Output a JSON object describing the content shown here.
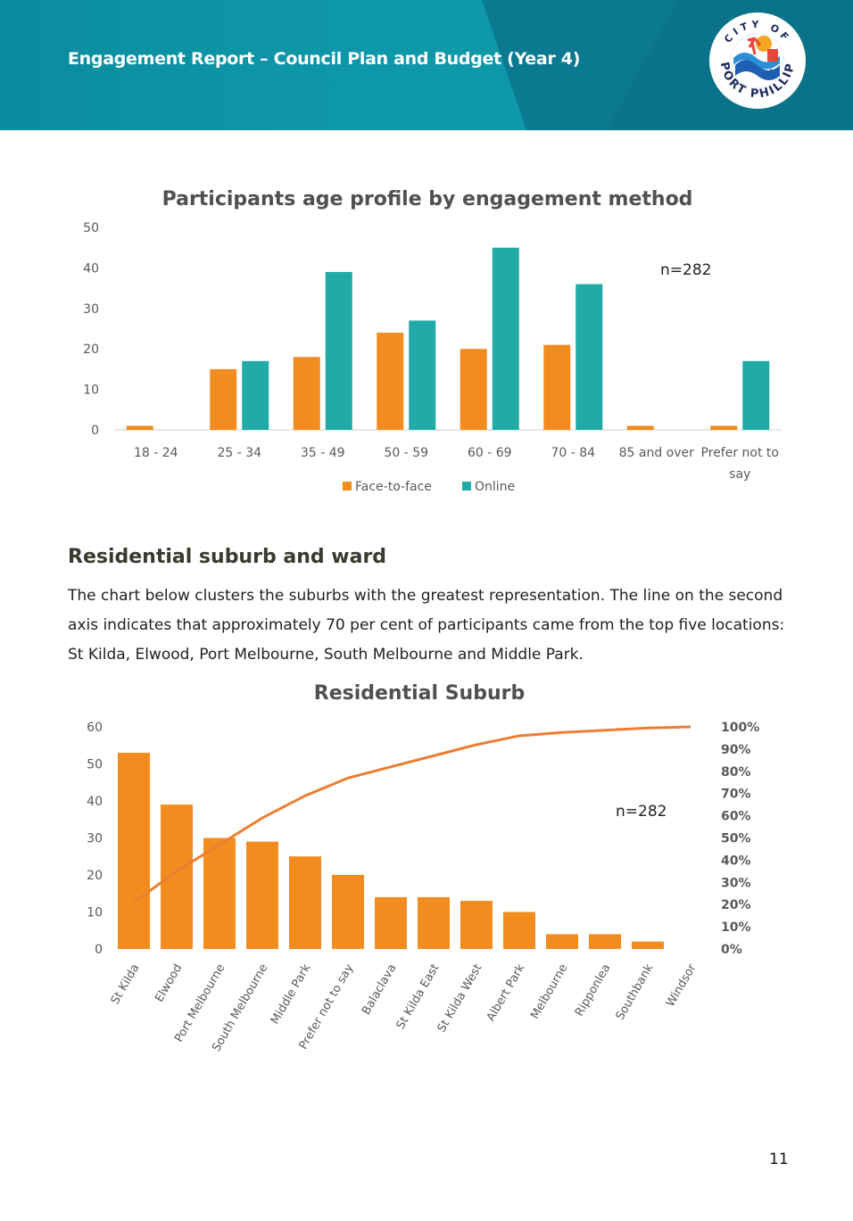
{
  "header": {
    "title": "Engagement Report – Council Plan and Budget (Year 4)",
    "logo": {
      "top_text": "CITY OF",
      "bottom_text": "PORT PHILLIP",
      "icon": "city-of-port-phillip-logo"
    }
  },
  "colors": {
    "face_to_face": "#f28c1e",
    "online": "#20aaa8",
    "header_teal": "#0f98a8",
    "pareto_line": "#ed7d31"
  },
  "chart1": {
    "title": "Participants age profile by engagement method",
    "annotation": "n=282"
  },
  "section": {
    "heading": "Residential suburb and ward",
    "paragraph": "The chart below clusters the suburbs with the greatest representation.  The line on the second axis indicates that approximately 70 per cent of participants came from the top five locations: St Kilda, Elwood, Port Melbourne, South Melbourne and Middle Park."
  },
  "chart2": {
    "title": "Residential Suburb",
    "annotation": "n=282"
  },
  "page_number": "11",
  "chart_data": [
    {
      "type": "bar",
      "title": "Participants age profile by engagement method",
      "categories": [
        "18 - 24",
        "25 - 34",
        "35 - 49",
        "50 - 59",
        "60 - 69",
        "70 - 84",
        "85 and over",
        "Prefer not to say"
      ],
      "series": [
        {
          "name": "Face-to-face",
          "values": [
            1,
            15,
            18,
            24,
            20,
            21,
            1,
            1
          ]
        },
        {
          "name": "Online",
          "values": [
            0,
            17,
            39,
            27,
            45,
            36,
            0,
            17
          ]
        }
      ],
      "ylim": [
        0,
        50
      ],
      "yticks": [
        "0",
        "10",
        "20",
        "30",
        "40",
        "50"
      ],
      "legend": "bottom",
      "grid": false
    },
    {
      "type": "bar",
      "title": "Residential Suburb",
      "categories": [
        "St Kilda",
        "Elwood",
        "Port Melbourne",
        "South Melbourne",
        "Middle Park",
        "Prefer not to say",
        "Balaclava",
        "St Kilda East",
        "St Kilda West",
        "Albert Park",
        "Melbourne",
        "Ripponlea",
        "Southbank",
        "Windsor"
      ],
      "values": [
        53,
        39,
        30,
        29,
        25,
        20,
        14,
        14,
        13,
        10,
        4,
        4,
        2,
        0
      ],
      "ylim": [
        0,
        60
      ],
      "yticks": [
        "0",
        "10",
        "20",
        "30",
        "40",
        "50",
        "60"
      ],
      "secondary_axis": {
        "type": "line",
        "values": [
          21,
          35,
          47,
          59,
          69,
          77,
          82,
          87,
          92,
          96,
          97.5,
          98.5,
          99.5,
          100
        ],
        "ylim": [
          0,
          100
        ],
        "yticks": [
          "0%",
          "10%",
          "20%",
          "30%",
          "40%",
          "50%",
          "60%",
          "70%",
          "80%",
          "90%",
          "100%"
        ]
      },
      "grid": false
    }
  ]
}
